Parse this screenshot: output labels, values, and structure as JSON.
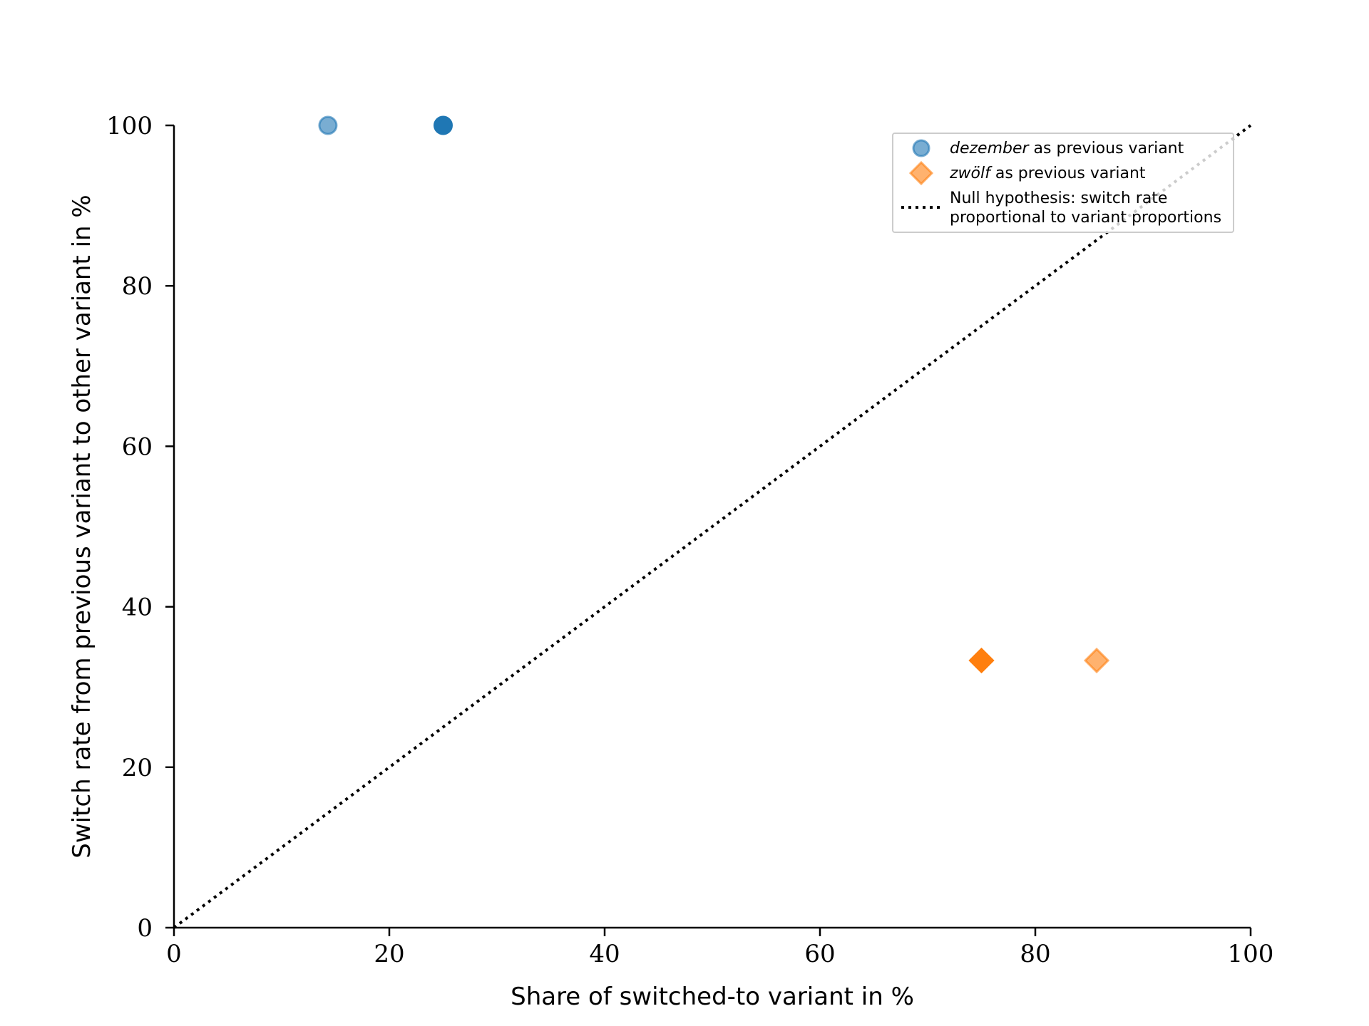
{
  "chart_data": {
    "type": "scatter",
    "title": "",
    "xlabel": "Share of switched-to variant in %",
    "ylabel": "Switch rate from previous variant to other variant in %",
    "xlim": [
      0,
      100
    ],
    "ylim": [
      0,
      100
    ],
    "xticks": [
      "0",
      "20",
      "40",
      "60",
      "80",
      "100"
    ],
    "yticks": [
      "0",
      "20",
      "40",
      "60",
      "80",
      "100"
    ],
    "grid": false,
    "legend_placement": "top-right",
    "series": [
      {
        "name_italic": "dezember",
        "name_rest": " as previous variant",
        "marker": "circle",
        "color": "#1f77b4",
        "points": [
          {
            "x": 14.3,
            "y": 100,
            "alpha": 0.6
          },
          {
            "x": 25.0,
            "y": 100,
            "alpha": 1.0
          }
        ]
      },
      {
        "name_italic": "zwölf",
        "name_rest": " as previous variant",
        "marker": "diamond",
        "color": "#ff7f0e",
        "points": [
          {
            "x": 75.0,
            "y": 33.3,
            "alpha": 1.0
          },
          {
            "x": 85.7,
            "y": 33.3,
            "alpha": 0.6
          }
        ]
      }
    ],
    "null_line": {
      "name_line1": "Null hypothesis: switch rate",
      "name_line2": "proportional to variant proportions",
      "from": [
        0,
        0
      ],
      "to": [
        100,
        100
      ],
      "style": "dotted",
      "color": "#000000"
    }
  }
}
